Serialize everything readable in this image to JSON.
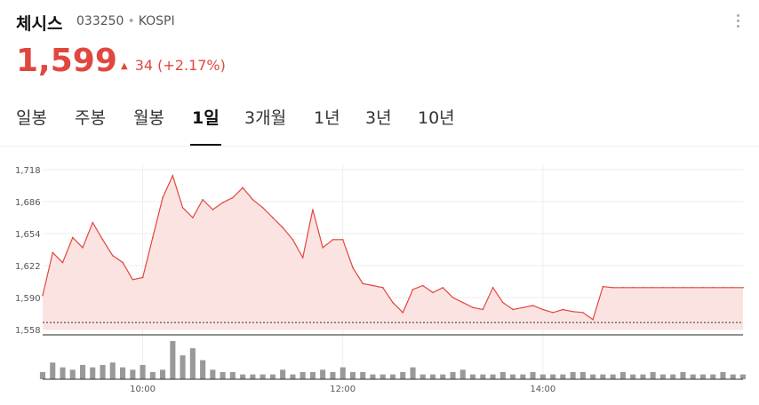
{
  "stock": {
    "name": "체시스",
    "code": "033250",
    "market": "KOSPI",
    "price": "1,599",
    "change_value": "34",
    "change_percent": "(+2.17%)",
    "up_color": "#e0473e"
  },
  "icons": {
    "more": "more-vertical-icon",
    "change_arrow": "triangle-up-icon"
  },
  "tabs": [
    {
      "label": "일봉",
      "active": false
    },
    {
      "label": "주봉",
      "active": false
    },
    {
      "label": "월봉",
      "active": false
    },
    {
      "label": "1일",
      "active": true
    },
    {
      "label": "3개월",
      "active": false
    },
    {
      "label": "1년",
      "active": false
    },
    {
      "label": "3년",
      "active": false
    },
    {
      "label": "10년",
      "active": false
    }
  ],
  "chart_data": {
    "type": "area",
    "x_tick_labels": [
      "10:00",
      "12:00",
      "14:00"
    ],
    "y_tick_labels": [
      "1,718",
      "1,686",
      "1,654",
      "1,622",
      "1,590",
      "1,558"
    ],
    "ylim": [
      1558,
      1718
    ],
    "prev_close": 1565,
    "line_color": "#e0473e",
    "fill_color": "#fbe3e1",
    "grid": true,
    "series": [
      {
        "x": [
          "09:00",
          "09:06",
          "09:12",
          "09:18",
          "09:24",
          "09:30",
          "09:36",
          "09:42",
          "09:48",
          "09:54",
          "10:00",
          "10:06",
          "10:12",
          "10:18",
          "10:24",
          "10:30",
          "10:36",
          "10:42",
          "10:48",
          "10:54",
          "11:00",
          "11:06",
          "11:12",
          "11:18",
          "11:24",
          "11:30",
          "11:36",
          "11:42",
          "11:48",
          "11:54",
          "12:00",
          "12:06",
          "12:12",
          "12:18",
          "12:24",
          "12:30",
          "12:36",
          "12:42",
          "12:48",
          "12:54",
          "13:00",
          "13:06",
          "13:12",
          "13:18",
          "13:24",
          "13:30",
          "13:36",
          "13:42",
          "13:48",
          "13:54",
          "14:00",
          "14:06",
          "14:12",
          "14:18",
          "14:24",
          "14:30",
          "14:36",
          "14:42",
          "14:48",
          "14:54",
          "15:00",
          "15:06",
          "15:12",
          "15:18",
          "15:24",
          "15:30",
          "15:36",
          "15:42",
          "15:48",
          "15:54",
          "16:00"
        ],
        "values": [
          1592,
          1635,
          1625,
          1650,
          1640,
          1665,
          1648,
          1632,
          1625,
          1608,
          1610,
          1650,
          1690,
          1712,
          1680,
          1670,
          1688,
          1678,
          1685,
          1690,
          1700,
          1688,
          1680,
          1670,
          1660,
          1648,
          1630,
          1678,
          1640,
          1648,
          1648,
          1620,
          1604,
          1602,
          1600,
          1585,
          1575,
          1598,
          1602,
          1595,
          1600,
          1590,
          1585,
          1580,
          1578,
          1600,
          1585,
          1578,
          1580,
          1582,
          1578,
          1575,
          1578,
          1576,
          1575,
          1568,
          1601,
          1600,
          1600,
          1600,
          1600,
          1600,
          1600,
          1600,
          1600,
          1600,
          1600,
          1600,
          1600,
          1600,
          1600
        ]
      }
    ],
    "volume": [
      3,
      7,
      5,
      4,
      6,
      5,
      6,
      7,
      5,
      4,
      6,
      3,
      4,
      16,
      10,
      13,
      8,
      4,
      3,
      3,
      2,
      2,
      2,
      2,
      4,
      2,
      3,
      3,
      4,
      3,
      5,
      3,
      3,
      2,
      2,
      2,
      3,
      5,
      2,
      2,
      2,
      3,
      4,
      2,
      2,
      2,
      3,
      2,
      2,
      3,
      2,
      2,
      2,
      3,
      3,
      2,
      2,
      2,
      3,
      2,
      2,
      3,
      2,
      2,
      3,
      2,
      2,
      2,
      3,
      2,
      2
    ]
  }
}
